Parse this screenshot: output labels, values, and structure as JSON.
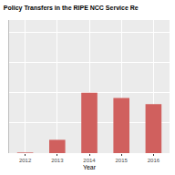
{
  "chart_data": {
    "type": "bar",
    "title": "Policy Transfers in the RIPE NCC Service Re",
    "x_label": "Year",
    "categories": [
      "2012",
      "2013",
      "2014",
      "2015",
      "2016"
    ],
    "values": [
      10,
      220,
      1000,
      910,
      810
    ],
    "color": "#d0605e",
    "ylim": [
      0,
      2200
    ],
    "yticks": [
      0,
      500,
      1000,
      1500,
      2000
    ],
    "grid": true,
    "tick_labels": "x"
  }
}
